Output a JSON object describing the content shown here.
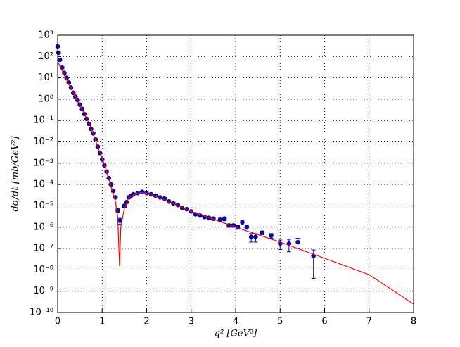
{
  "chart_data": {
    "type": "scatter-line",
    "xlabel": "q² [GeV²]",
    "ylabel": "dσ/dt [mb/GeV²]",
    "xlim": [
      0,
      8
    ],
    "xticks": [
      0,
      1,
      2,
      3,
      4,
      5,
      6,
      7,
      8
    ],
    "ylim": [
      1e-10,
      1000
    ],
    "yscale": "log",
    "yticks": [
      {
        "value": 1e-10,
        "label": "10⁻¹⁰"
      },
      {
        "value": 1e-09,
        "label": "10⁻⁹"
      },
      {
        "value": 1e-08,
        "label": "10⁻⁸"
      },
      {
        "value": 1e-07,
        "label": "10⁻⁷"
      },
      {
        "value": 1e-06,
        "label": "10⁻⁶"
      },
      {
        "value": 1e-05,
        "label": "10⁻⁵"
      },
      {
        "value": 0.0001,
        "label": "10⁻⁴"
      },
      {
        "value": 0.001,
        "label": "10⁻³"
      },
      {
        "value": 0.01,
        "label": "10⁻²"
      },
      {
        "value": 0.1,
        "label": "10⁻¹"
      },
      {
        "value": 1,
        "label": "10⁰"
      },
      {
        "value": 10,
        "label": "10¹"
      },
      {
        "value": 100,
        "label": "10²"
      },
      {
        "value": 1000,
        "label": "10³"
      }
    ],
    "grid": true,
    "series": [
      {
        "kind": "points",
        "color": "#0000cc",
        "x": [
          0,
          0.02,
          0.05,
          0.1,
          0.15,
          0.2,
          0.25,
          0.3,
          0.35,
          0.4,
          0.45,
          0.5,
          0.55,
          0.6,
          0.65,
          0.7,
          0.75,
          0.8,
          0.85,
          0.9,
          0.95,
          1.0,
          1.05,
          1.1,
          1.15,
          1.2,
          1.25,
          1.3,
          1.35,
          1.4,
          1.5,
          1.55,
          1.6,
          1.65,
          1.7,
          1.8,
          1.9,
          2.0,
          2.1,
          2.2,
          2.3,
          2.4,
          2.5,
          2.6,
          2.7,
          2.8,
          2.9,
          3.0,
          3.1,
          3.2,
          3.3,
          3.4,
          3.5,
          3.65,
          3.75,
          3.85,
          3.95,
          4.05,
          4.15,
          4.25,
          4.35,
          4.45,
          4.6,
          4.8,
          5.0,
          5.2,
          5.4,
          5.75
        ],
        "values": [
          300,
          150,
          70,
          30,
          17,
          10,
          6,
          3.5,
          2,
          1.3,
          0.9,
          0.55,
          0.35,
          0.2,
          0.12,
          0.07,
          0.04,
          0.025,
          0.013,
          0.006,
          0.003,
          0.0015,
          0.0008,
          0.0004,
          0.0002,
          0.0001,
          5e-05,
          2.5e-05,
          6e-06,
          2e-06,
          1e-05,
          1.5e-05,
          2.5e-05,
          3e-05,
          3.5e-05,
          4e-05,
          4.5e-05,
          4e-05,
          3.5e-05,
          3e-05,
          2.5e-05,
          2.2e-05,
          1.6e-05,
          1.3e-05,
          1.1e-05,
          8e-06,
          7e-06,
          5.5e-06,
          4e-06,
          3.5e-06,
          3e-06,
          2.7e-06,
          2.5e-06,
          2.2e-06,
          2.5e-06,
          1.2e-06,
          1.2e-06,
          1e-06,
          1.7e-06,
          1e-06,
          3.5e-07,
          3.5e-07,
          5.5e-07,
          4e-07,
          1.7e-07,
          1.7e-07,
          2e-07,
          4.5e-08
        ],
        "errors": [
          30,
          15,
          7,
          3,
          1.7,
          1,
          0.6,
          0.35,
          0.2,
          0.13,
          0.09,
          0.055,
          0.035,
          0.02,
          0.012,
          0.007,
          0.004,
          0.0025,
          0.0013,
          0.0006,
          0.0003,
          0.00015,
          8e-05,
          4e-05,
          2e-05,
          1e-05,
          5e-06,
          2.5e-06,
          1.2e-06,
          6e-07,
          1.5e-06,
          2e-06,
          3e-06,
          3e-06,
          3.5e-06,
          4e-06,
          4.5e-06,
          4e-06,
          3.5e-06,
          3e-06,
          2.5e-06,
          2.2e-06,
          1.6e-06,
          1.3e-06,
          1.1e-06,
          8e-07,
          7e-07,
          6e-07,
          5e-07,
          4e-07,
          4e-07,
          4e-07,
          4e-07,
          4e-07,
          5e-07,
          2e-07,
          2e-07,
          2e-07,
          4e-07,
          2e-07,
          1.5e-07,
          1.5e-07,
          1e-07,
          1e-07,
          8e-08,
          1e-07,
          1e-07,
          4.1e-08
        ]
      },
      {
        "kind": "line",
        "color": "#ff0000",
        "x": [
          0,
          0.05,
          0.2,
          0.44,
          0.73,
          0.9,
          1.04,
          1.2,
          1.3,
          1.35,
          1.39,
          1.42,
          1.5,
          1.6,
          1.8,
          1.9,
          2.0,
          2.5,
          3.0,
          3.5,
          4.0,
          5.0,
          6.0,
          7.0,
          8.0
        ],
        "values": [
          60,
          35,
          8,
          0.9,
          0.06,
          0.006,
          0.001,
          8e-05,
          1.5e-05,
          3e-06,
          1.5e-08,
          1e-06,
          8e-06,
          2.5e-05,
          4e-05,
          4.2e-05,
          4e-05,
          1.6e-05,
          5.5e-06,
          2.4e-06,
          1e-06,
          2e-07,
          3.5e-08,
          6e-09,
          2.5e-10
        ]
      }
    ]
  }
}
